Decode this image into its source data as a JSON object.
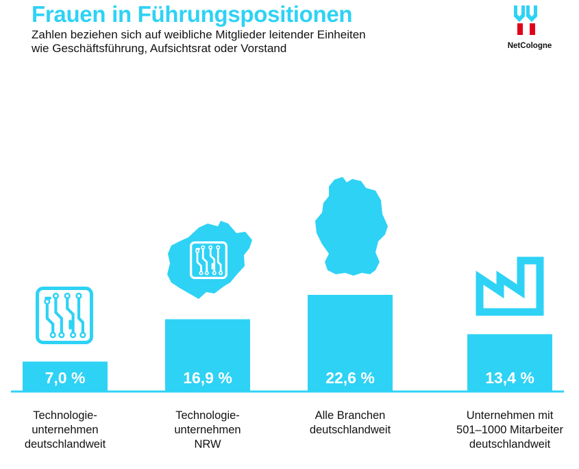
{
  "header": {
    "title": "Frauen in Führungspositionen",
    "subtitle_line1": "Zahlen beziehen sich auf weibliche Mitglieder leitender Einheiten",
    "subtitle_line2": "wie Geschäftsführung, Aufsichtsrat oder Vorstand"
  },
  "logo": {
    "text": "NetCologne"
  },
  "colors": {
    "accent": "#2ed2f5",
    "brand_red": "#e2001a",
    "text": "#111111"
  },
  "chart_data": {
    "type": "bar",
    "title": "Frauen in Führungspositionen",
    "categories": [
      "Technologie-\nunternehmen\ndeutschlandweit",
      "Technologie-\nunternehmen\nNRW",
      "Alle Branchen\ndeutschlandweit",
      "Unternehmen mit\n501–1000 Mitarbeiter\ndeutschlandweit"
    ],
    "values": [
      7.0,
      16.9,
      22.6,
      13.4
    ],
    "data_labels": [
      "7,0 %",
      "16,9 %",
      "22,6 %",
      "13,4 %"
    ],
    "icons": [
      "circuit-chip-icon",
      "nrw-map-chip-icon",
      "germany-map-icon",
      "factory-icon"
    ],
    "ylim": [
      0,
      25
    ],
    "grid": false
  }
}
